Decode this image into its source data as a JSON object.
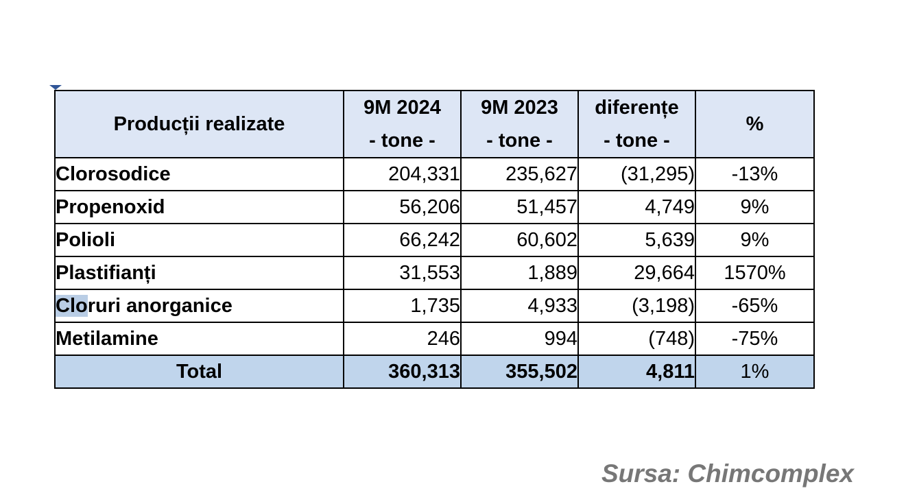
{
  "table": {
    "headers": [
      {
        "line1": "Producții realizate",
        "line2": ""
      },
      {
        "line1": "9M 2024",
        "line2": "- tone -"
      },
      {
        "line1": "9M 2023",
        "line2": "- tone -"
      },
      {
        "line1": "diferențe",
        "line2": "- tone -"
      },
      {
        "line1": "%",
        "line2": ""
      }
    ],
    "rows": [
      {
        "product": "Clorosodice",
        "y2024": "204,331",
        "y2023": "235,627",
        "diff": "(31,295)",
        "pct": "-13%"
      },
      {
        "product": "Propenoxid",
        "y2024": "56,206",
        "y2023": "51,457",
        "diff": "4,749",
        "pct": "9%"
      },
      {
        "product": "Polioli",
        "y2024": "66,242",
        "y2023": "60,602",
        "diff": "5,639",
        "pct": "9%"
      },
      {
        "product": "Plastifianți",
        "y2024": "31,553",
        "y2023": "1,889",
        "diff": "29,664",
        "pct": "1570%"
      },
      {
        "product": "Cloruri anorganice",
        "y2024": "1,735",
        "y2023": "4,933",
        "diff": "(3,198)",
        "pct": "-65%"
      },
      {
        "product": "Metilamine",
        "y2024": "246",
        "y2023": "994",
        "diff": "(748)",
        "pct": "-75%"
      }
    ],
    "total": {
      "product": "Total",
      "y2024": "360,313",
      "y2023": "355,502",
      "diff": "4,811",
      "pct": "1%"
    }
  },
  "source": "Sursa: Chimcomplex",
  "colors": {
    "header_bg": "#dde6f5",
    "total_bg": "#c0d5ec",
    "source_text": "#777777"
  }
}
